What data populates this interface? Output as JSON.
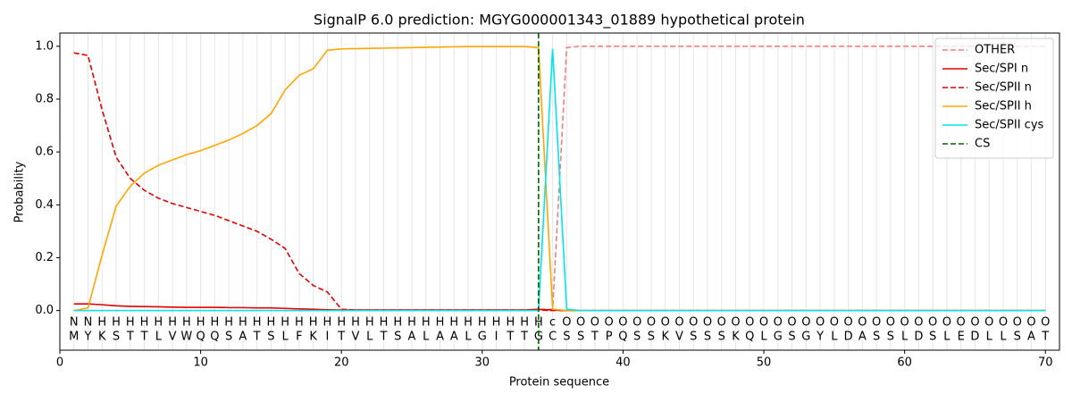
{
  "chart_data": {
    "type": "line",
    "title": "SignalP 6.0 prediction: MGYG000001343_01889 hypothetical protein",
    "x_label": "Protein sequence",
    "y_label": "Probability",
    "x": [
      1,
      2,
      3,
      4,
      5,
      6,
      7,
      8,
      9,
      10,
      11,
      12,
      13,
      14,
      15,
      16,
      17,
      18,
      19,
      20,
      21,
      22,
      23,
      24,
      25,
      26,
      27,
      28,
      29,
      30,
      31,
      32,
      33,
      34,
      35,
      36,
      37,
      38,
      39,
      40,
      41,
      42,
      43,
      44,
      45,
      46,
      47,
      48,
      49,
      50,
      51,
      52,
      53,
      54,
      55,
      56,
      57,
      58,
      59,
      60,
      61,
      62,
      63,
      64,
      65,
      66,
      67,
      68,
      69,
      70
    ],
    "sequence": [
      "M",
      "Y",
      "K",
      "S",
      "T",
      "T",
      "L",
      "V",
      "W",
      "Q",
      "Q",
      "S",
      "A",
      "T",
      "S",
      "L",
      "F",
      "K",
      "I",
      "T",
      "V",
      "L",
      "T",
      "S",
      "A",
      "L",
      "A",
      "A",
      "L",
      "G",
      "I",
      "T",
      "T",
      "G",
      "C",
      "S",
      "S",
      "T",
      "P",
      "Q",
      "S",
      "S",
      "K",
      "V",
      "S",
      "S",
      "S",
      "K",
      "Q",
      "L",
      "G",
      "S",
      "G",
      "Y",
      "L",
      "D",
      "A",
      "S",
      "S",
      "L",
      "D",
      "S",
      "L",
      "E",
      "D",
      "L",
      "L",
      "S",
      "A",
      "T"
    ],
    "labels": [
      "N",
      "N",
      "H",
      "H",
      "H",
      "H",
      "H",
      "H",
      "H",
      "H",
      "H",
      "H",
      "H",
      "H",
      "H",
      "H",
      "H",
      "H",
      "H",
      "H",
      "H",
      "H",
      "H",
      "H",
      "H",
      "H",
      "H",
      "H",
      "H",
      "H",
      "H",
      "H",
      "H",
      "H",
      "c",
      "O",
      "O",
      "O",
      "O",
      "O",
      "O",
      "O",
      "O",
      "O",
      "O",
      "O",
      "O",
      "O",
      "O",
      "O",
      "O",
      "O",
      "O",
      "O",
      "O",
      "O",
      "O",
      "O",
      "O",
      "O",
      "O",
      "O",
      "O",
      "O",
      "O",
      "O",
      "O",
      "O",
      "O",
      "O"
    ],
    "label_colors": {
      "N": "#e00000",
      "H": "#ffa500",
      "c": "#00e5ee",
      "O": "#808080"
    },
    "series": [
      {
        "name": "OTHER",
        "color": "#f08080",
        "dashed": true,
        "values": [
          0,
          0,
          0,
          0,
          0,
          0,
          0,
          0,
          0,
          0,
          0,
          0,
          0,
          0,
          0,
          0,
          0,
          0,
          0,
          0,
          0,
          0,
          0,
          0,
          0,
          0,
          0,
          0,
          0,
          0,
          0,
          0,
          0,
          0.003,
          0.005,
          0.995,
          1,
          1,
          1,
          1,
          1,
          1,
          1,
          1,
          1,
          1,
          1,
          1,
          1,
          1,
          1,
          1,
          1,
          1,
          1,
          1,
          1,
          1,
          1,
          1,
          1,
          1,
          1,
          1,
          1,
          1,
          1,
          1,
          1,
          1
        ]
      },
      {
        "name": "Sec/SPI n",
        "color": "#e00000",
        "dashed": false,
        "values": [
          0.025,
          0.025,
          0.022,
          0.018,
          0.016,
          0.015,
          0.014,
          0.013,
          0.012,
          0.012,
          0.012,
          0.011,
          0.011,
          0.01,
          0.01,
          0.008,
          0.006,
          0.005,
          0.003,
          0.002,
          0.002,
          0.002,
          0.002,
          0.002,
          0.002,
          0.002,
          0.002,
          0.002,
          0.002,
          0.002,
          0.002,
          0.002,
          0.002,
          0.005,
          0.002,
          0,
          0,
          0,
          0,
          0,
          0,
          0,
          0,
          0,
          0,
          0,
          0,
          0,
          0,
          0,
          0,
          0,
          0,
          0,
          0,
          0,
          0,
          0,
          0,
          0,
          0,
          0,
          0,
          0,
          0,
          0,
          0,
          0,
          0,
          0
        ]
      },
      {
        "name": "Sec/SPII n",
        "color": "#e00000",
        "dashed": true,
        "values": [
          0.975,
          0.965,
          0.76,
          0.58,
          0.5,
          0.455,
          0.425,
          0.405,
          0.39,
          0.375,
          0.36,
          0.34,
          0.32,
          0.3,
          0.27,
          0.235,
          0.14,
          0.095,
          0.07,
          0.005,
          0.002,
          0.002,
          0.002,
          0.002,
          0.002,
          0.002,
          0.002,
          0.002,
          0.002,
          0.002,
          0.002,
          0.002,
          0.002,
          0.002,
          0,
          0,
          0,
          0,
          0,
          0,
          0,
          0,
          0,
          0,
          0,
          0,
          0,
          0,
          0,
          0,
          0,
          0,
          0,
          0,
          0,
          0,
          0,
          0,
          0,
          0,
          0,
          0,
          0,
          0,
          0,
          0,
          0,
          0,
          0,
          0
        ]
      },
      {
        "name": "Sec/SPII h",
        "color": "#ffa500",
        "dashed": false,
        "values": [
          0,
          0.01,
          0.21,
          0.395,
          0.47,
          0.52,
          0.55,
          0.57,
          0.59,
          0.605,
          0.625,
          0.645,
          0.67,
          0.7,
          0.745,
          0.835,
          0.89,
          0.915,
          0.985,
          0.99,
          0.991,
          0.992,
          0.993,
          0.994,
          0.995,
          0.996,
          0.997,
          0.998,
          0.999,
          0.999,
          0.999,
          0.999,
          0.999,
          0.995,
          0.005,
          0,
          0,
          0,
          0,
          0,
          0,
          0,
          0,
          0,
          0,
          0,
          0,
          0,
          0,
          0,
          0,
          0,
          0,
          0,
          0,
          0,
          0,
          0,
          0,
          0,
          0,
          0,
          0,
          0,
          0,
          0,
          0,
          0,
          0,
          0
        ]
      },
      {
        "name": "Sec/SPII cys",
        "color": "#00e5ee",
        "dashed": false,
        "values": [
          0,
          0,
          0,
          0,
          0,
          0,
          0,
          0,
          0,
          0,
          0,
          0,
          0,
          0,
          0,
          0,
          0,
          0,
          0,
          0,
          0,
          0,
          0,
          0,
          0,
          0,
          0,
          0,
          0,
          0,
          0,
          0,
          0,
          0,
          0.99,
          0.005,
          0,
          0,
          0,
          0,
          0,
          0,
          0,
          0,
          0,
          0,
          0,
          0,
          0,
          0,
          0,
          0,
          0,
          0,
          0,
          0,
          0,
          0,
          0,
          0,
          0,
          0,
          0,
          0,
          0,
          0,
          0,
          0,
          0,
          0
        ]
      }
    ],
    "cs": {
      "name": "CS",
      "color": "#006400",
      "position": 34
    },
    "xlim": [
      0,
      71
    ],
    "xticks": [
      0,
      10,
      20,
      30,
      40,
      50,
      60,
      70
    ],
    "ylim": [
      -0.15,
      1.05
    ],
    "yticks": [
      {
        "value": 0,
        "label": "0.0"
      },
      {
        "value": 0.2,
        "label": "0.2"
      },
      {
        "value": 0.4,
        "label": "0.4"
      },
      {
        "value": 0.6,
        "label": "0.6"
      },
      {
        "value": 0.8,
        "label": "0.8"
      },
      {
        "value": 1,
        "label": "1.0"
      }
    ],
    "position_grid": true,
    "legend": "upper right"
  }
}
